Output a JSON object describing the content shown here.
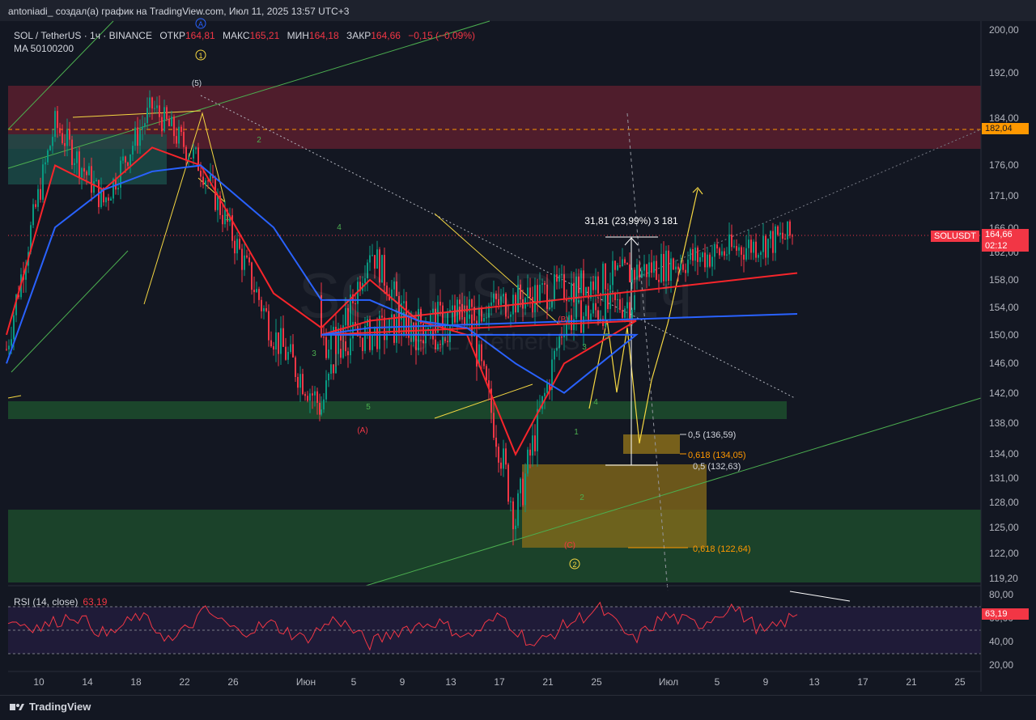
{
  "header": {
    "text": "antoniadi_ создал(а) график на TradingView.com, Июл 11, 2025 13:57 UTC+3"
  },
  "legend": {
    "symbol": "SOL / TetherUS · 1ч · BINANCE",
    "open_label": "ОТКР",
    "open": "164,81",
    "high_label": "МАКС",
    "high": "165,21",
    "low_label": "МИН",
    "low": "164,18",
    "close_label": "ЗАКР",
    "close": "164,66",
    "change": "−0,15 (−0,09%)",
    "ma": "MA 50100200"
  },
  "rsi": {
    "label": "RSI (14, close)",
    "value": "63,19"
  },
  "price_labels": {
    "level_182": "182,04",
    "last_price": "164,66",
    "countdown": "02:12",
    "symbol_tag": "SOLUSDT",
    "rsi_tag": "63,19"
  },
  "annotations": {
    "measure": "31,81 (23,99%) 3 181",
    "fib_05_a": "0,5 (136,59)",
    "fib_0618_a": "0,618 (134,05)",
    "fib_05_b": "0,5 (132,63)",
    "fib_0618_b": "0,618 (122,64)",
    "waves": {
      "w5_top": "(5)",
      "circle1": "1",
      "circleA": "A",
      "circle2": "2",
      "A": "(A)",
      "B": "(B)",
      "C": "(C)",
      "g2": "2",
      "g1": "1",
      "g4": "4",
      "g3": "3",
      "g5": "5",
      "y5": "5",
      "y3": "3",
      "y4": "4",
      "y1": "1",
      "y2": "2"
    }
  },
  "watermark": {
    "line1": "SOLUSDT, 1ч",
    "line2": "SOL / TetherUS"
  },
  "footer": {
    "brand": "TradingView"
  },
  "colors": {
    "up": "#089981",
    "down": "#f23645",
    "ma_red": "#f7252b",
    "ma_blue": "#2962ff",
    "resistance_zone": "#5b1f2e",
    "support_zone": "#1d4a2c",
    "fib_zone": "#8a6d1a"
  },
  "chart_data": {
    "type": "line",
    "title": "SOL / TetherUS · 1ч · BINANCE",
    "x_ticks": [
      "10",
      "14",
      "18",
      "22",
      "26",
      "Июн",
      "5",
      "9",
      "13",
      "17",
      "21",
      "25",
      "Июл",
      "5",
      "9",
      "13",
      "17",
      "21",
      "25"
    ],
    "y_ticks": [
      "200,00",
      "192,00",
      "184,00",
      "176,00",
      "171,00",
      "166,00",
      "162,00",
      "158,00",
      "154,00",
      "150,00",
      "146,00",
      "142,00",
      "138,00",
      "134,00",
      "131,00",
      "128,00",
      "125,00",
      "122,00",
      "119,20"
    ],
    "rsi_ticks": [
      "80,00",
      "60,00",
      "40,00",
      "20,00"
    ],
    "ylim": [
      118,
      202
    ],
    "y_scale": "log",
    "series": [
      {
        "name": "SOL / TetherUS",
        "x": [
          "10",
          "14",
          "18",
          "22",
          "26",
          "Июн",
          "5",
          "9",
          "13",
          "17",
          "21",
          "25",
          "Июл",
          "5",
          "9",
          "13"
        ],
        "values": [
          148,
          183,
          170,
          186,
          176,
          150,
          140,
          163,
          148,
          153,
          126,
          152,
          155,
          149,
          150,
          164.66
        ]
      },
      {
        "x": [
          "10",
          "14",
          "18",
          "22",
          "26",
          "Июн",
          "5",
          "9",
          "13",
          "17",
          "21",
          "25",
          "Июл",
          "5",
          "9",
          "13"
        ],
        "values": [
          150,
          176,
          172,
          179,
          176,
          156,
          151,
          158,
          152,
          150,
          134,
          146,
          152,
          150,
          152,
          159
        ]
      },
      {
        "x": [
          "10",
          "14",
          "18",
          "22",
          "26",
          "Июн",
          "5",
          "9",
          "13",
          "17",
          "21",
          "25",
          "Июл",
          "5",
          "9",
          "13"
        ],
        "values": [
          146,
          166,
          172,
          175,
          176,
          166,
          155,
          155,
          152,
          151,
          146,
          142,
          150,
          150,
          151,
          153
        ]
      }
    ],
    "rsi_values": [
      58,
      52,
      63,
      45,
      62,
      40,
      66,
      48,
      55,
      42,
      60,
      38,
      51,
      57,
      44,
      62,
      36,
      55,
      68,
      41,
      62,
      54,
      70,
      47,
      63
    ]
  }
}
